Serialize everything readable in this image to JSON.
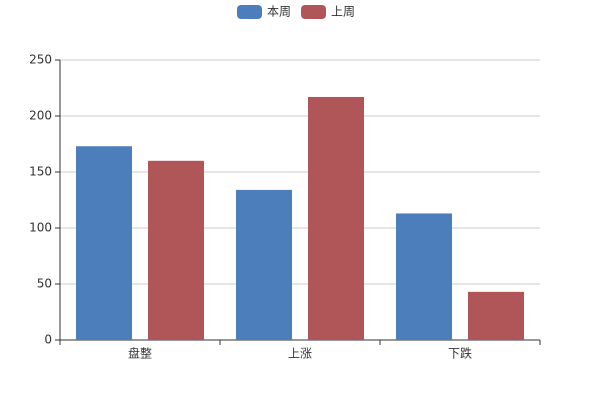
{
  "chart_data": {
    "type": "bar",
    "categories": [
      "盘整",
      "上涨",
      "下跌"
    ],
    "series": [
      {
        "name": "本周",
        "color": "#4c7ebb",
        "values": [
          173,
          134,
          113
        ]
      },
      {
        "name": "上周",
        "color": "#b05558",
        "values": [
          160,
          217,
          43
        ]
      }
    ],
    "ylim": [
      0,
      250
    ],
    "yticks": [
      0,
      50,
      100,
      150,
      200,
      250
    ],
    "grid": true,
    "legend": "top"
  }
}
